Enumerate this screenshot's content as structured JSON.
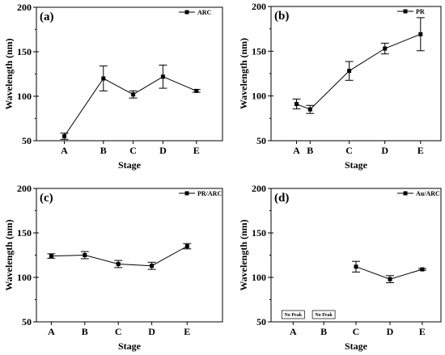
{
  "chart_data": [
    {
      "type": "line",
      "panel_label": "(a)",
      "categories": [
        "A",
        "B",
        "C",
        "D",
        "E"
      ],
      "series": [
        {
          "name": "ARC",
          "values": [
            55,
            120,
            102,
            122,
            106
          ],
          "errors": [
            3.5,
            14,
            4,
            13,
            1.5
          ]
        }
      ],
      "xlabel": "Stage",
      "ylabel": "Wavelength (nm)",
      "ylim": [
        50,
        200
      ],
      "yticks": [
        "50",
        "100",
        "150",
        "200"
      ],
      "grid": false,
      "legend_position": "top-right"
    },
    {
      "type": "line",
      "panel_label": "(b)",
      "categories": [
        "A",
        "B",
        "C",
        "D",
        "E"
      ],
      "series": [
        {
          "name": "PR",
          "values": [
            91,
            85,
            128,
            153,
            169
          ],
          "errors": [
            5.5,
            4.5,
            10.5,
            6,
            18.5
          ]
        }
      ],
      "xlabel": "Stage",
      "ylabel": "Wavelength (nm)",
      "ylim": [
        50,
        200
      ],
      "yticks": [
        "50",
        "100",
        "150",
        "200"
      ],
      "grid": false,
      "legend_position": "top-right"
    },
    {
      "type": "line",
      "panel_label": "(c)",
      "categories": [
        "A",
        "B",
        "C",
        "D",
        "E"
      ],
      "series": [
        {
          "name": "PR/ARC",
          "values": [
            124,
            125,
            115,
            113,
            135
          ],
          "errors": [
            2.5,
            4,
            4,
            4,
            3
          ]
        }
      ],
      "xlabel": "Stage",
      "ylabel": "Wavelength (nm)",
      "ylim": [
        50,
        200
      ],
      "yticks": [
        "50",
        "100",
        "150",
        "200"
      ],
      "grid": false,
      "legend_position": "top-right"
    },
    {
      "type": "line",
      "panel_label": "(d)",
      "categories": [
        "A",
        "B",
        "C",
        "D",
        "E"
      ],
      "series": [
        {
          "name": "Au/ARC",
          "values": [
            null,
            null,
            112,
            98,
            109
          ],
          "errors": [
            null,
            null,
            6,
            4,
            1
          ]
        }
      ],
      "annotations": [
        {
          "category": "A",
          "text": "No Peak"
        },
        {
          "category": "B",
          "text": "No Peak"
        }
      ],
      "xlabel": "Stage",
      "ylabel": "Wavelength (nm)",
      "ylim": [
        50,
        200
      ],
      "yticks": [
        "50",
        "100",
        "150",
        "200"
      ],
      "grid": false,
      "legend_position": "top-right"
    }
  ]
}
